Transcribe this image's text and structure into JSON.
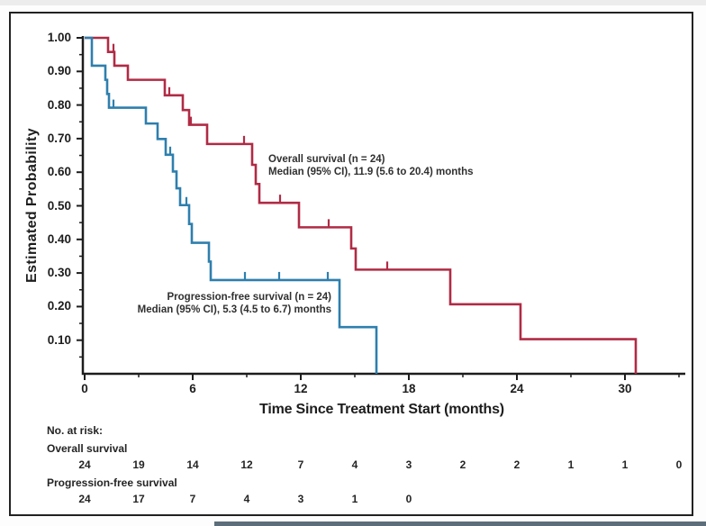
{
  "chart_data": {
    "type": "line",
    "subtype": "kaplan-meier-step",
    "title": "",
    "xlabel": "Time Since Treatment Start (months)",
    "ylabel": "Estimated Probability",
    "xlim": [
      0,
      33.3
    ],
    "ylim": [
      0,
      1.0
    ],
    "grid": false,
    "x_major_ticks": [
      0,
      6,
      12,
      18,
      24,
      30
    ],
    "x_major_tick_labels": [
      "0",
      "6",
      "12",
      "18",
      "24",
      "30"
    ],
    "x_minor_ticks": [
      3,
      9,
      15,
      21,
      27,
      33
    ],
    "y_major_ticks": [
      1.0,
      0.9,
      0.8,
      0.7,
      0.6,
      0.5,
      0.4,
      0.3,
      0.2,
      0.1
    ],
    "y_major_tick_labels": [
      "1.00",
      "0.90",
      "0.80",
      "0.70",
      "0.60",
      "0.50",
      "0.40",
      "0.30",
      "0.20",
      "0.10"
    ],
    "y_minor_ticks": [
      0.95,
      0.85,
      0.75,
      0.65,
      0.55,
      0.45,
      0.35,
      0.25,
      0.15,
      0.05
    ],
    "series": [
      {
        "name": "Overall survival",
        "color": "#b02b45",
        "annotation": [
          "Overall survival (n = 24)",
          "Median (95% CI), 11.9 (5.6 to 20.4) months"
        ],
        "steps": [
          [
            0,
            1.0
          ],
          [
            1.3,
            0.958
          ],
          [
            1.65,
            0.917
          ],
          [
            2.4,
            0.875
          ],
          [
            4.45,
            0.829
          ],
          [
            5.45,
            0.785
          ],
          [
            5.8,
            0.741
          ],
          [
            6.8,
            0.684
          ],
          [
            9.3,
            0.622
          ],
          [
            9.5,
            0.565
          ],
          [
            9.7,
            0.509
          ],
          [
            11.9,
            0.436
          ],
          [
            14.8,
            0.373
          ],
          [
            15.05,
            0.31
          ],
          [
            20.3,
            0.207
          ],
          [
            24.2,
            0.103
          ],
          [
            30.6,
            0
          ]
        ],
        "censors": [
          [
            1.6,
            0.958
          ],
          [
            4.7,
            0.829
          ],
          [
            5.9,
            0.741
          ],
          [
            8.85,
            0.684
          ],
          [
            10.85,
            0.509
          ],
          [
            13.55,
            0.436
          ],
          [
            16.8,
            0.31
          ]
        ]
      },
      {
        "name": "Progression-free survival",
        "color": "#2e7fad",
        "annotation": [
          "Progression-free survival (n = 24)",
          "Median (95% CI), 5.3 (4.5 to 6.7) months"
        ],
        "steps": [
          [
            0,
            1.0
          ],
          [
            0.4,
            0.917
          ],
          [
            1.15,
            0.875
          ],
          [
            1.25,
            0.833
          ],
          [
            1.35,
            0.792
          ],
          [
            3.4,
            0.745
          ],
          [
            4.05,
            0.699
          ],
          [
            4.5,
            0.652
          ],
          [
            4.9,
            0.602
          ],
          [
            5.1,
            0.552
          ],
          [
            5.3,
            0.502
          ],
          [
            5.8,
            0.446
          ],
          [
            5.95,
            0.39
          ],
          [
            6.9,
            0.334
          ],
          [
            7.0,
            0.279
          ],
          [
            14.15,
            0.139
          ],
          [
            16.2,
            0
          ]
        ],
        "censors": [
          [
            1.6,
            0.792
          ],
          [
            4.75,
            0.652
          ],
          [
            5.65,
            0.502
          ],
          [
            8.9,
            0.279
          ],
          [
            10.8,
            0.279
          ],
          [
            13.5,
            0.279
          ]
        ]
      }
    ],
    "risk_table": {
      "header": "No. at risk:",
      "rows": [
        {
          "label": "Overall survival",
          "months": [
            0,
            3,
            6,
            9,
            12,
            15,
            18,
            21,
            24,
            27,
            30,
            33
          ],
          "values": [
            "24",
            "19",
            "14",
            "12",
            "7",
            "4",
            "3",
            "2",
            "2",
            "1",
            "1",
            "0"
          ]
        },
        {
          "label": "Progression-free survival",
          "months": [
            0,
            3,
            6,
            9,
            12,
            15,
            18
          ],
          "values": [
            "24",
            "17",
            "7",
            "4",
            "3",
            "1",
            "0"
          ]
        }
      ]
    }
  }
}
